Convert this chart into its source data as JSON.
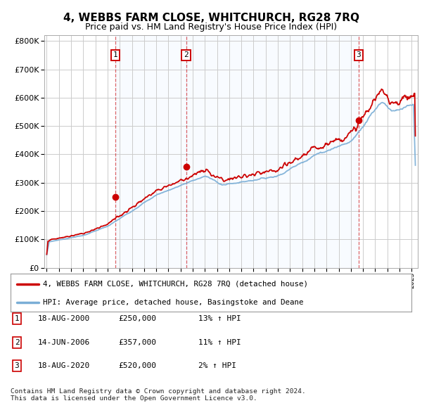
{
  "title": "4, WEBBS FARM CLOSE, WHITCHURCH, RG28 7RQ",
  "subtitle": "Price paid vs. HM Land Registry's House Price Index (HPI)",
  "title_fontsize": 11,
  "subtitle_fontsize": 9,
  "ytick_vals": [
    0,
    100000,
    200000,
    300000,
    400000,
    500000,
    600000,
    700000,
    800000
  ],
  "ylim": [
    0,
    820000
  ],
  "xlim_start": 1994.8,
  "xlim_end": 2025.5,
  "background_color": "#ffffff",
  "grid_color": "#cccccc",
  "sale_color": "#cc0000",
  "hpi_color": "#7aaed6",
  "shade_color": "#ddeeff",
  "sale_points": [
    {
      "year": 2000.63,
      "price": 250000,
      "label": "1"
    },
    {
      "year": 2006.45,
      "price": 357000,
      "label": "2"
    },
    {
      "year": 2020.63,
      "price": 520000,
      "label": "3"
    }
  ],
  "legend_entries": [
    {
      "label": "4, WEBBS FARM CLOSE, WHITCHURCH, RG28 7RQ (detached house)",
      "color": "#cc0000"
    },
    {
      "label": "HPI: Average price, detached house, Basingstoke and Deane",
      "color": "#7aaed6"
    }
  ],
  "table_rows": [
    {
      "num": "1",
      "date": "18-AUG-2000",
      "price": "£250,000",
      "hpi": "13% ↑ HPI"
    },
    {
      "num": "2",
      "date": "14-JUN-2006",
      "price": "£357,000",
      "hpi": "11% ↑ HPI"
    },
    {
      "num": "3",
      "date": "18-AUG-2020",
      "price": "£520,000",
      "hpi": "2% ↑ HPI"
    }
  ],
  "footnote": "Contains HM Land Registry data © Crown copyright and database right 2024.\nThis data is licensed under the Open Government Licence v3.0.",
  "xtick_years": [
    1995,
    1996,
    1997,
    1998,
    1999,
    2000,
    2001,
    2002,
    2003,
    2004,
    2005,
    2006,
    2007,
    2008,
    2009,
    2010,
    2011,
    2012,
    2013,
    2014,
    2015,
    2016,
    2017,
    2018,
    2019,
    2020,
    2021,
    2022,
    2023,
    2024,
    2025
  ]
}
